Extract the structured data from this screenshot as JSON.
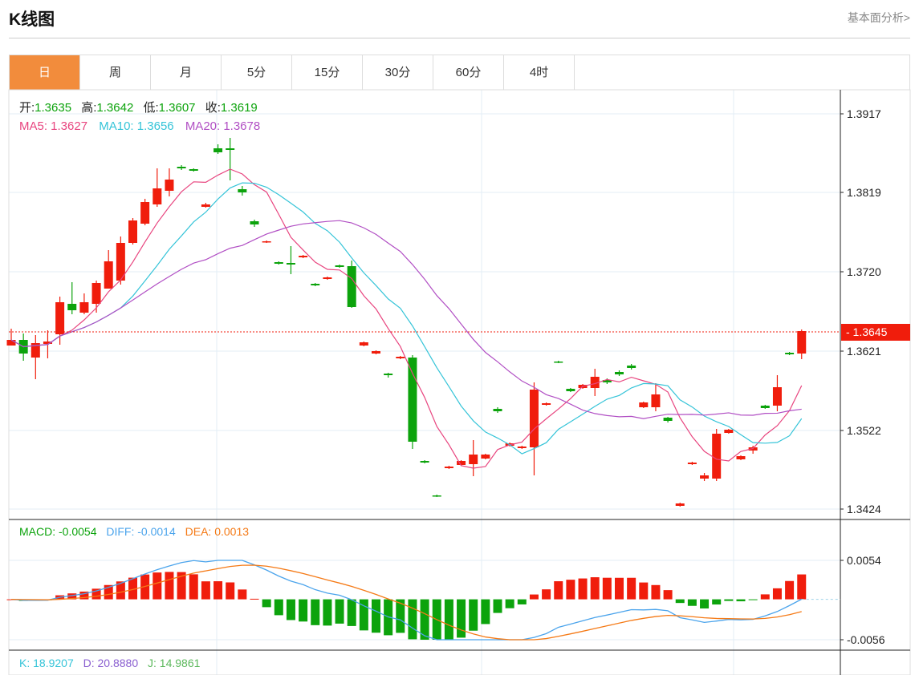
{
  "header": {
    "title": "K线图",
    "link": "基本面分析>"
  },
  "tabs": [
    {
      "label": "日",
      "active": true
    },
    {
      "label": "周"
    },
    {
      "label": "月"
    },
    {
      "label": "5分"
    },
    {
      "label": "15分"
    },
    {
      "label": "30分"
    },
    {
      "label": "60分"
    },
    {
      "label": "4时"
    }
  ],
  "info": {
    "open_label": "开:",
    "open": "1.3635",
    "high_label": "高:",
    "high": "1.3642",
    "low_label": "低:",
    "low": "1.3607",
    "close_label": "收:",
    "close": "1.3619",
    "ma5": "MA5: 1.3627",
    "ma10": "MA10: 1.3656",
    "ma20": "MA20: 1.3678",
    "macd": "MACD: -0.0054",
    "diff": "DIFF: -0.0014",
    "dea": "DEA: 0.0013",
    "k": "K: 18.9207",
    "d": "D: 20.8880",
    "j": "J: 14.9861"
  },
  "colors": {
    "up": "#f01d0c",
    "down": "#0ca30c",
    "ma5": "#e8457f",
    "ma10": "#35c4d8",
    "ma20": "#b14fc4",
    "diff": "#4ba4ec",
    "dea": "#f57a16",
    "accent": "#f28c3c"
  },
  "chart_data": {
    "type": "candlestick",
    "price_axis": {
      "ticks": [
        "1.3917",
        "1.3819",
        "1.3720",
        "1.3621",
        "1.3522",
        "1.3424"
      ],
      "range": [
        1.3424,
        1.3917
      ]
    },
    "current_price": "1.3645",
    "macd_axis": {
      "ticks": [
        "0.0054",
        "-0.0056"
      ],
      "range": [
        -0.0056,
        0.0054
      ]
    },
    "ohlc": [
      [
        1.3628,
        1.3649,
        1.3628,
        1.3635
      ],
      [
        1.3635,
        1.3643,
        1.3609,
        1.3618
      ],
      [
        1.3613,
        1.3641,
        1.3586,
        1.3631
      ],
      [
        1.363,
        1.3647,
        1.3612,
        1.3633
      ],
      [
        1.3642,
        1.3689,
        1.3629,
        1.3682
      ],
      [
        1.368,
        1.3707,
        1.3667,
        1.3672
      ],
      [
        1.3669,
        1.3693,
        1.3667,
        1.3682
      ],
      [
        1.368,
        1.3709,
        1.3669,
        1.3706
      ],
      [
        1.3699,
        1.3747,
        1.3699,
        1.3733
      ],
      [
        1.3709,
        1.3764,
        1.3704,
        1.3756
      ],
      [
        1.3756,
        1.3787,
        1.3754,
        1.3784
      ],
      [
        1.378,
        1.3811,
        1.3778,
        1.3807
      ],
      [
        1.3804,
        1.3849,
        1.3801,
        1.3824
      ],
      [
        1.3821,
        1.3849,
        1.3814,
        1.3835
      ],
      [
        1.3851,
        1.3853,
        1.3847,
        1.3849
      ],
      [
        1.3848,
        1.3849,
        1.3845,
        1.3846
      ],
      [
        1.3801,
        1.3806,
        1.38,
        1.3804
      ],
      [
        1.3874,
        1.3879,
        1.3867,
        1.3869
      ],
      [
        1.3874,
        1.3887,
        1.3834,
        1.3872
      ],
      [
        1.3823,
        1.3827,
        1.3815,
        1.3819
      ],
      [
        1.3783,
        1.3785,
        1.3776,
        1.3779
      ],
      [
        1.3757,
        1.3759,
        1.3756,
        1.3758
      ],
      [
        1.3732,
        1.3733,
        1.3729,
        1.373
      ],
      [
        1.3731,
        1.3752,
        1.3717,
        1.3729
      ],
      [
        1.3738,
        1.3741,
        1.3737,
        1.374
      ],
      [
        1.3705,
        1.3706,
        1.3702,
        1.3703
      ],
      [
        1.3711,
        1.3714,
        1.371,
        1.3713
      ],
      [
        1.3728,
        1.3729,
        1.3725,
        1.3726
      ],
      [
        1.3727,
        1.3734,
        1.3675,
        1.3676
      ],
      [
        1.3628,
        1.3633,
        1.3627,
        1.3632
      ],
      [
        1.3618,
        1.3622,
        1.3617,
        1.3621
      ],
      [
        1.3593,
        1.3594,
        1.3588,
        1.3591
      ],
      [
        1.3612,
        1.3615,
        1.3611,
        1.3614
      ],
      [
        1.3613,
        1.3616,
        1.3499,
        1.3508
      ],
      [
        1.3484,
        1.3485,
        1.3481,
        1.3482
      ],
      [
        1.3441,
        1.3442,
        1.3439,
        1.344
      ],
      [
        1.3475,
        1.3478,
        1.3474,
        1.3477
      ],
      [
        1.3479,
        1.3485,
        1.3478,
        1.3484
      ],
      [
        1.348,
        1.351,
        1.3465,
        1.3492
      ],
      [
        1.3487,
        1.3493,
        1.3486,
        1.3492
      ],
      [
        1.3549,
        1.3551,
        1.3544,
        1.3546
      ],
      [
        1.3503,
        1.3507,
        1.3502,
        1.3506
      ],
      [
        1.35,
        1.3503,
        1.3499,
        1.3502
      ],
      [
        1.3501,
        1.3582,
        1.3466,
        1.3573
      ],
      [
        1.3554,
        1.3557,
        1.3553,
        1.3556
      ],
      [
        1.3608,
        1.3609,
        1.3606,
        1.3607
      ],
      [
        1.3574,
        1.3575,
        1.357,
        1.3571
      ],
      [
        1.3575,
        1.358,
        1.3574,
        1.3579
      ],
      [
        1.3575,
        1.3599,
        1.3565,
        1.3589
      ],
      [
        1.3585,
        1.3587,
        1.358,
        1.3582
      ],
      [
        1.3595,
        1.3597,
        1.359,
        1.3592
      ],
      [
        1.3603,
        1.3605,
        1.3598,
        1.36
      ],
      [
        1.3551,
        1.3558,
        1.355,
        1.3557
      ],
      [
        1.3551,
        1.3581,
        1.3546,
        1.3567
      ],
      [
        1.3538,
        1.3539,
        1.3532,
        1.3534
      ],
      [
        1.3428,
        1.3432,
        1.3427,
        1.3431
      ],
      [
        1.348,
        1.3483,
        1.3479,
        1.3482
      ],
      [
        1.3462,
        1.3469,
        1.3459,
        1.3466
      ],
      [
        1.3462,
        1.3524,
        1.3459,
        1.3518
      ],
      [
        1.3519,
        1.3524,
        1.3518,
        1.3523
      ],
      [
        1.3486,
        1.3491,
        1.3485,
        1.349
      ],
      [
        1.3497,
        1.3503,
        1.3493,
        1.3501
      ],
      [
        1.3553,
        1.3554,
        1.3549,
        1.355
      ],
      [
        1.3553,
        1.3591,
        1.3546,
        1.3576
      ],
      [
        1.3619,
        1.362,
        1.3616,
        1.3617
      ],
      [
        1.3618,
        1.3648,
        1.3611,
        1.3646
      ]
    ]
  }
}
